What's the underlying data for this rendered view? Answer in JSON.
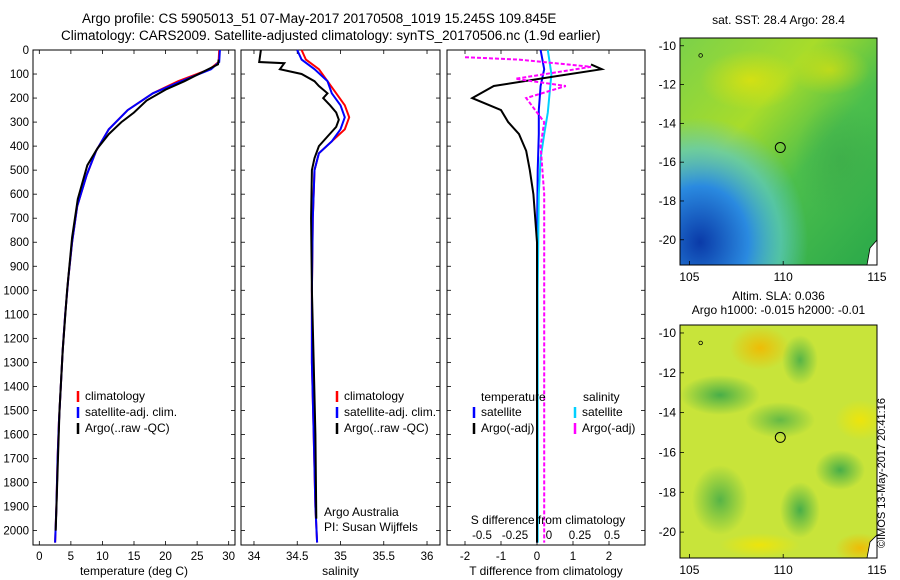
{
  "header": {
    "line1": "Argo profile: CS 5905013_51 07-May-2017 20170508_1019 15.245S 109.845E",
    "line2": "Climatology: CARS2009. Satellite-adjusted climatology: synTS_20170506.nc (1.9d earlier)"
  },
  "stamp": "©IMOS 13-May-2017 20:41:16",
  "colors": {
    "climatology": "#ff0000",
    "satellite": "#0000ff",
    "argo": "#000000",
    "sat_salinity": "#00d0ff",
    "argo_salinity_adj": "#ff00ff"
  },
  "chart_data": [
    {
      "type": "line",
      "id": "temperature",
      "xlabel": "temperature (deg C)",
      "xlim": [
        -1,
        31
      ],
      "ylim": [
        2060,
        0
      ],
      "y_inverted": true,
      "x_ticks": [
        0,
        5,
        10,
        15,
        20,
        25,
        30
      ],
      "y_ticks": [
        0,
        100,
        200,
        300,
        400,
        500,
        600,
        700,
        800,
        900,
        1000,
        1100,
        1200,
        1300,
        1400,
        1500,
        1600,
        1700,
        1800,
        1900,
        2000
      ],
      "legend": [
        "climatology",
        "satellite-adj. clim.",
        "Argo(..raw -QC)"
      ],
      "series": [
        {
          "name": "climatology",
          "x": [
            28.5,
            28.4,
            27,
            22,
            18,
            14,
            11,
            9,
            7.5,
            6,
            5.2,
            4.6,
            4.1,
            3.7,
            3.4,
            3.1,
            2.9,
            2.7,
            2.5
          ],
          "y": [
            0,
            50,
            80,
            130,
            180,
            250,
            330,
            420,
            520,
            650,
            800,
            950,
            1100,
            1250,
            1400,
            1550,
            1700,
            1900,
            2050
          ]
        },
        {
          "name": "satellite-adj. clim.",
          "x": [
            28.6,
            28.5,
            27.2,
            22.5,
            18,
            14,
            11,
            9,
            7.5,
            6,
            5.2,
            4.6,
            4.1,
            3.7,
            3.4,
            3.1,
            2.9,
            2.7,
            2.5
          ],
          "y": [
            0,
            50,
            80,
            130,
            180,
            250,
            330,
            420,
            520,
            650,
            800,
            950,
            1100,
            1250,
            1400,
            1550,
            1700,
            1900,
            2050
          ]
        },
        {
          "name": "Argo(..raw -QC)",
          "x": [
            28.4,
            28.3,
            26,
            23,
            20,
            17,
            15,
            13,
            11,
            9.2,
            7.6,
            6.1,
            5.2,
            4.4,
            3.7,
            3.2,
            2.9,
            2.6
          ],
          "y": [
            40,
            60,
            90,
            130,
            165,
            210,
            260,
            300,
            350,
            410,
            480,
            620,
            780,
            1000,
            1250,
            1500,
            1750,
            2000
          ]
        }
      ]
    },
    {
      "type": "line",
      "id": "salinity",
      "xlabel": "salinity",
      "xlim": [
        33.85,
        36.15
      ],
      "ylim": [
        2060,
        0
      ],
      "x_ticks": [
        34,
        34.5,
        35,
        35.5,
        36
      ],
      "legend": [
        "climatology",
        "satellite-adj. clim.",
        "Argo(..raw -QC)"
      ],
      "annotation": [
        "Argo Australia",
        "PI: Susan Wijffels"
      ],
      "series": [
        {
          "name": "climatology",
          "x": [
            34.55,
            34.6,
            34.75,
            34.85,
            34.95,
            35.05,
            35.1,
            35.05,
            34.9,
            34.75,
            34.7,
            34.68,
            34.67,
            34.67,
            34.69,
            34.71,
            34.73
          ],
          "y": [
            0,
            40,
            80,
            130,
            180,
            230,
            280,
            330,
            380,
            430,
            500,
            700,
            1000,
            1300,
            1600,
            1900,
            2050
          ]
        },
        {
          "name": "satellite-adj. clim.",
          "x": [
            34.5,
            34.55,
            34.7,
            34.85,
            34.9,
            35.0,
            35.05,
            35.0,
            34.9,
            34.75,
            34.7,
            34.68,
            34.67,
            34.67,
            34.69,
            34.71,
            34.73
          ],
          "y": [
            0,
            40,
            80,
            130,
            180,
            230,
            280,
            330,
            380,
            430,
            500,
            700,
            1000,
            1300,
            1600,
            1900,
            2050
          ]
        },
        {
          "name": "Argo(..raw -QC)",
          "x": [
            34.08,
            34.06,
            34.35,
            34.3,
            34.55,
            34.7,
            34.75,
            34.85,
            34.8,
            34.88,
            34.95,
            34.98,
            34.95,
            34.85,
            34.75,
            34.7,
            34.67,
            34.66,
            34.67,
            34.69,
            34.71,
            34.72
          ],
          "y": [
            0,
            50,
            55,
            80,
            100,
            130,
            150,
            180,
            200,
            230,
            260,
            290,
            320,
            360,
            400,
            450,
            500,
            700,
            1000,
            1300,
            1600,
            1950
          ]
        }
      ]
    },
    {
      "type": "line",
      "id": "difference",
      "xlabel": "T difference from climatology",
      "xlabel_top": "S difference from climatology",
      "xlim": [
        -2.5,
        3
      ],
      "ylim": [
        2060,
        0
      ],
      "x_ticks": [
        -2,
        -1,
        0,
        1,
        2
      ],
      "x_ticks_top_labels": [
        "-0.5",
        "-0.25",
        "0",
        "0.25",
        "0.5"
      ],
      "legend_temperature": {
        "title": "temperature",
        "items": [
          "satellite",
          "Argo(-adj)"
        ]
      },
      "legend_salinity": {
        "title": "salinity",
        "items": [
          "satellite",
          "Argo(-adj)"
        ]
      },
      "series": [
        {
          "name": "temperature satellite",
          "x": [
            0.1,
            0.2,
            0.1,
            0.05,
            0.05,
            0.02,
            0.0,
            0.0,
            0.0,
            0.0
          ],
          "y": [
            0,
            80,
            150,
            250,
            350,
            500,
            800,
            1200,
            1600,
            2050
          ]
        },
        {
          "name": "salinity satellite",
          "x": [
            0.3,
            0.4,
            0.35,
            0.3,
            0.2,
            0.1,
            0.05,
            0.02,
            0.02,
            0.02
          ],
          "y": [
            0,
            100,
            180,
            260,
            350,
            450,
            600,
            1000,
            1500,
            2050
          ]
        },
        {
          "name": "temperature Argo(-adj)",
          "x": [
            1.5,
            1.8,
            0.5,
            -1.2,
            -1.8,
            -1.0,
            -0.8,
            -0.5,
            -0.3,
            -0.2,
            -0.1,
            0.0,
            0.0
          ],
          "y": [
            60,
            80,
            110,
            150,
            200,
            250,
            300,
            350,
            420,
            500,
            600,
            800,
            2050
          ]
        },
        {
          "name": "salinity Argo(-adj)",
          "x": [
            -2.0,
            -0.5,
            1.5,
            -0.6,
            0.8,
            -0.3,
            0.2,
            0.1,
            0.2,
            0.2,
            0.2
          ],
          "y": [
            30,
            40,
            70,
            120,
            150,
            200,
            300,
            400,
            600,
            1000,
            2050
          ]
        }
      ]
    },
    {
      "type": "heatmap",
      "id": "sst-map",
      "title": "sat. SST: 28.4 Argo: 28.4",
      "xlim": [
        104.5,
        115
      ],
      "ylim": [
        -21.3,
        -9.6
      ],
      "x_ticks": [
        105,
        110,
        115
      ],
      "y_ticks": [
        -10,
        -12,
        -14,
        -16,
        -18,
        -20
      ],
      "marker": {
        "lon": 109.845,
        "lat": -15.245
      }
    },
    {
      "type": "heatmap",
      "id": "sla-map",
      "title_lines": [
        "Altim. SLA: 0.036",
        "Argo h1000: -0.015 h2000: -0.01"
      ],
      "xlim": [
        104.5,
        115
      ],
      "ylim": [
        -21.3,
        -9.6
      ],
      "x_ticks": [
        105,
        110,
        115
      ],
      "y_ticks": [
        -10,
        -12,
        -14,
        -16,
        -18,
        -20
      ],
      "marker": {
        "lon": 109.845,
        "lat": -15.245
      }
    }
  ]
}
